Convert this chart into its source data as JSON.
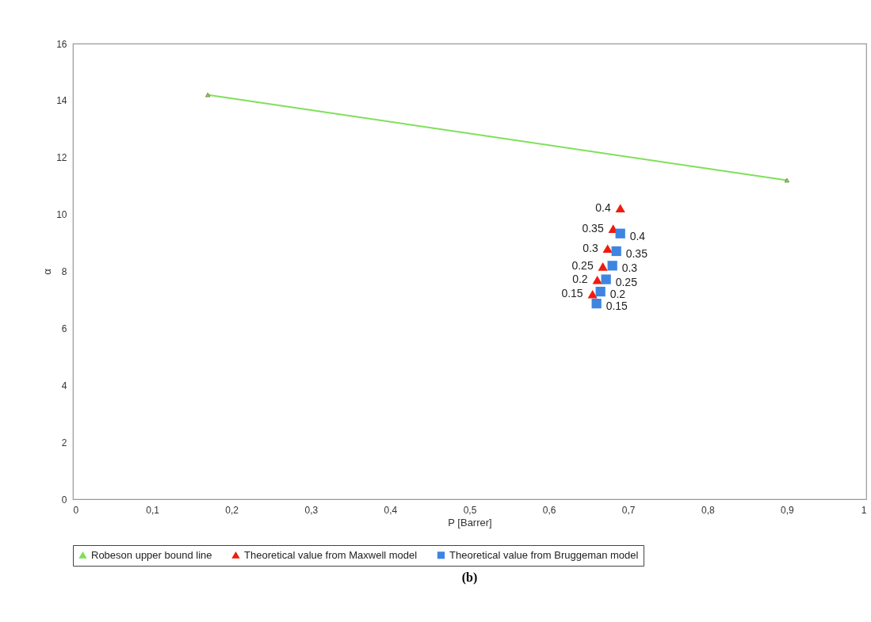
{
  "chart_data": {
    "type": "scatter",
    "xlabel": "P [Barrer]",
    "ylabel": "α",
    "xlim": [
      0,
      1
    ],
    "xticks": [
      0,
      {
        "value": 0.1,
        "label": "0,1"
      },
      {
        "value": 0.2,
        "label": "0,2"
      },
      {
        "value": 0.3,
        "label": "0,3"
      },
      {
        "value": 0.4,
        "label": "0,4"
      },
      {
        "value": 0.5,
        "label": "0,5"
      },
      {
        "value": 0.6,
        "label": "0,6"
      },
      {
        "value": 0.7,
        "label": "0,7"
      },
      {
        "value": 0.8,
        "label": "0,8"
      },
      {
        "value": 0.9,
        "label": "0,9"
      },
      1
    ],
    "ylim": [
      0,
      16
    ],
    "yticks": [
      0,
      2,
      4,
      6,
      8,
      10,
      12,
      14,
      16
    ],
    "grid": false,
    "legend": "bottom",
    "series": [
      {
        "name": "Robeson upper bound line",
        "type": "line",
        "marker": "triangle",
        "color": "#7fe05a",
        "x": [
          0.17,
          0.9
        ],
        "values": [
          14.2,
          11.2
        ]
      },
      {
        "name": "Theoretical value from Maxwell model",
        "marker": "triangle",
        "color": "#ee1c0e",
        "x": [
          0.655,
          0.661,
          0.668,
          0.674,
          0.681,
          0.69
        ],
        "values": [
          7.2,
          7.7,
          8.17,
          8.8,
          9.5,
          10.22
        ]
      },
      {
        "name": "Theoretical value from Bruggeman model",
        "marker": "square",
        "color": "#3d85e0",
        "x": [
          0.66,
          0.665,
          0.672,
          0.68,
          0.685,
          0.69
        ],
        "values": [
          6.87,
          7.29,
          7.72,
          8.2,
          8.71,
          9.33
        ]
      }
    ],
    "annotations": [
      {
        "text": "0.15",
        "x": 0.655,
        "y": 7.2
      },
      {
        "text": "0.2",
        "x": 0.661,
        "y": 7.7
      },
      {
        "text": "0.25",
        "x": 0.668,
        "y": 8.17
      },
      {
        "text": "0.3",
        "x": 0.674,
        "y": 8.8
      },
      {
        "text": "0.35",
        "x": 0.681,
        "y": 9.5
      },
      {
        "text": "0.4",
        "x": 0.69,
        "y": 10.22
      },
      {
        "text": "0.15",
        "x": 0.66,
        "y": 6.87
      },
      {
        "text": "0.2",
        "x": 0.665,
        "y": 7.29
      },
      {
        "text": "0.25",
        "x": 0.672,
        "y": 7.72
      },
      {
        "text": "0.3",
        "x": 0.68,
        "y": 8.2
      },
      {
        "text": "0.35",
        "x": 0.685,
        "y": 8.71
      },
      {
        "text": "0.4",
        "x": 0.69,
        "y": 9.33
      },
      "(b)"
    ]
  }
}
